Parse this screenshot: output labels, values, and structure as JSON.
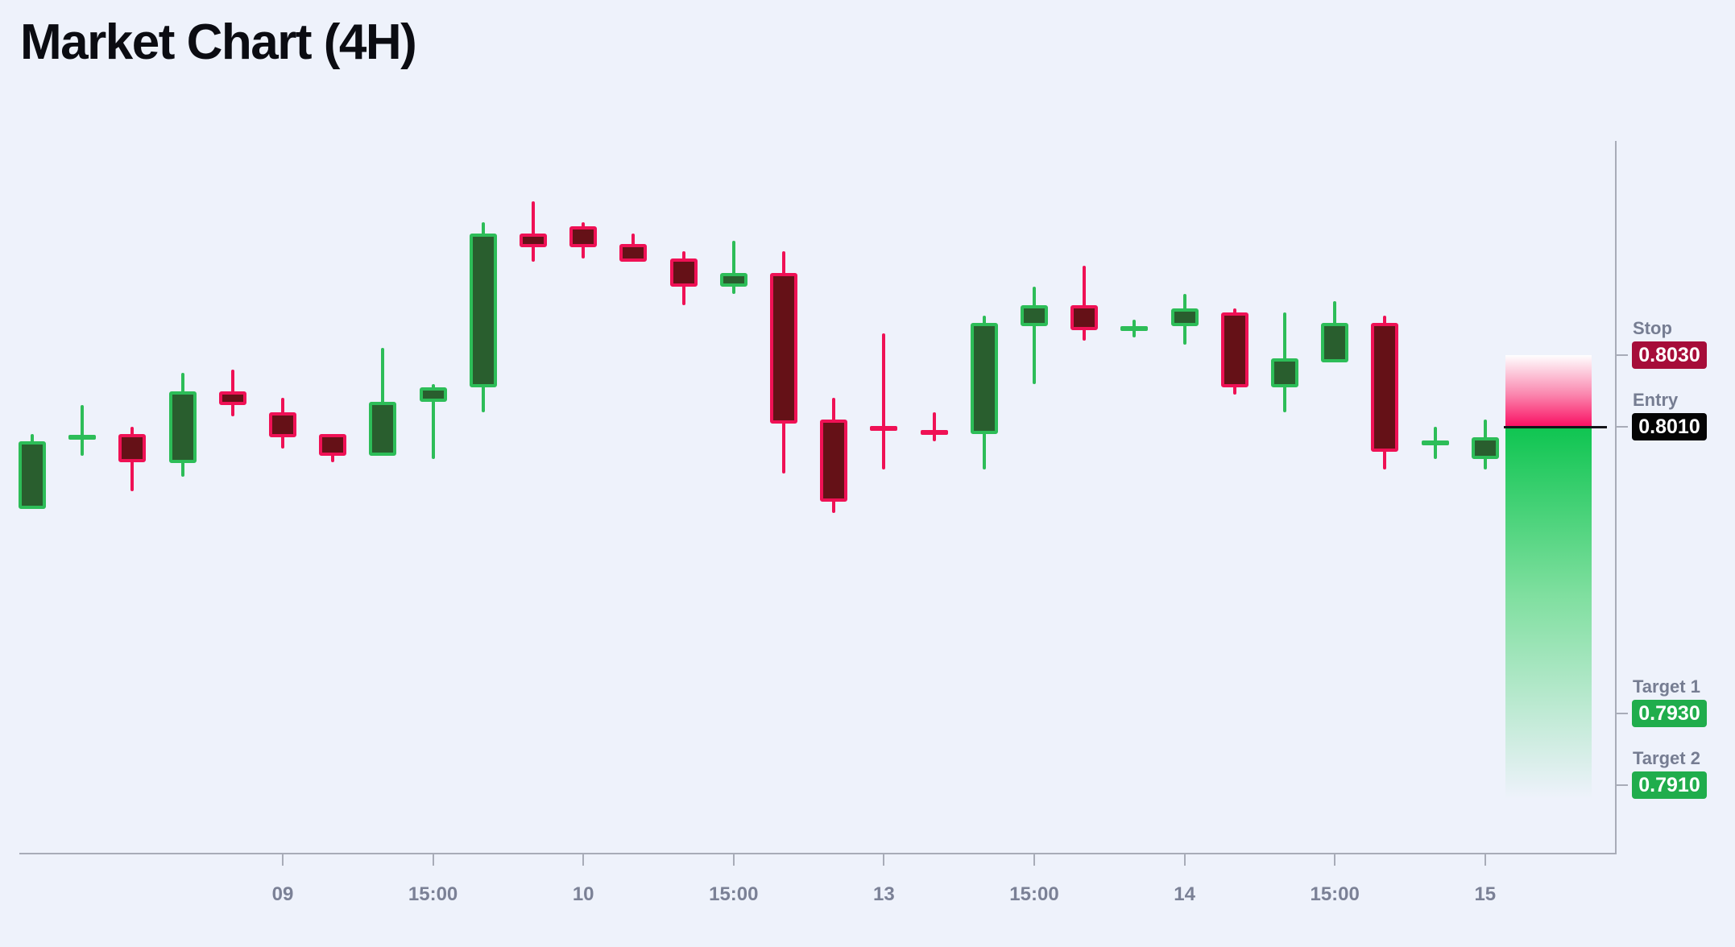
{
  "title": "Market Chart (4H)",
  "colors": {
    "bg": "#eef2fb",
    "title": "#0b0c12",
    "bull_fill": "#295e2e",
    "bull_border": "#2dbd58",
    "bear_fill": "#651117",
    "bear_border": "#ef1155",
    "axis": "#a8acb8",
    "tick_label": "#7b8196",
    "level_label": "#767d92",
    "badge_text": "#ffffff",
    "stop_badge": "#a60d39",
    "entry_badge": "#050505",
    "target_badge": "#20ad4c",
    "risk": "#f90f62",
    "reward": "#0fc551",
    "entry_line": "#141519"
  },
  "levels": {
    "stop": {
      "label": "Stop",
      "value": "0.8030"
    },
    "entry": {
      "label": "Entry",
      "value": "0.8010"
    },
    "target1": {
      "label": "Target 1",
      "value": "0.7930"
    },
    "target2": {
      "label": "Target 2",
      "value": "0.7910"
    }
  },
  "axis": {
    "x_ticks": [
      {
        "label": "09",
        "index": 5
      },
      {
        "label": "15:00",
        "index": 8
      },
      {
        "label": "10",
        "index": 11
      },
      {
        "label": "15:00",
        "index": 14
      },
      {
        "label": "13",
        "index": 17
      },
      {
        "label": "15:00",
        "index": 20
      },
      {
        "label": "14",
        "index": 23
      },
      {
        "label": "15:00",
        "index": 26
      },
      {
        "label": "15",
        "index": 29
      }
    ]
  },
  "chart_data": {
    "type": "candlestick",
    "title": "Market Chart (4H)",
    "timeframe": "4H",
    "x_axis_labels": [
      "09",
      "15:00",
      "10",
      "15:00",
      "13",
      "15:00",
      "14",
      "15:00",
      "15"
    ],
    "price_levels": {
      "stop": 0.803,
      "entry": 0.801,
      "target1": 0.793,
      "target2": 0.791
    },
    "trade_direction": "short",
    "ylim": [
      0.789,
      0.808
    ],
    "candles": [
      {
        "o": 0.7987,
        "h": 0.8008,
        "l": 0.7987,
        "c": 0.8006
      },
      {
        "o": 0.8006,
        "h": 0.8016,
        "l": 0.8002,
        "c": 0.8008
      },
      {
        "o": 0.8008,
        "h": 0.801,
        "l": 0.7992,
        "c": 0.8
      },
      {
        "o": 0.8,
        "h": 0.8025,
        "l": 0.7996,
        "c": 0.802
      },
      {
        "o": 0.802,
        "h": 0.8026,
        "l": 0.8013,
        "c": 0.8016
      },
      {
        "o": 0.8014,
        "h": 0.8018,
        "l": 0.8004,
        "c": 0.8007
      },
      {
        "o": 0.8008,
        "h": 0.8008,
        "l": 0.8,
        "c": 0.8002
      },
      {
        "o": 0.8002,
        "h": 0.8032,
        "l": 0.8002,
        "c": 0.8017
      },
      {
        "o": 0.8017,
        "h": 0.8022,
        "l": 0.8001,
        "c": 0.8021
      },
      {
        "o": 0.8021,
        "h": 0.8067,
        "l": 0.8014,
        "c": 0.8064
      },
      {
        "o": 0.8064,
        "h": 0.8073,
        "l": 0.8056,
        "c": 0.806
      },
      {
        "o": 0.8066,
        "h": 0.8067,
        "l": 0.8057,
        "c": 0.806
      },
      {
        "o": 0.8061,
        "h": 0.8064,
        "l": 0.8056,
        "c": 0.8056
      },
      {
        "o": 0.8057,
        "h": 0.8059,
        "l": 0.8044,
        "c": 0.8049
      },
      {
        "o": 0.8049,
        "h": 0.8062,
        "l": 0.8047,
        "c": 0.8053
      },
      {
        "o": 0.8053,
        "h": 0.8059,
        "l": 0.7997,
        "c": 0.8011
      },
      {
        "o": 0.8012,
        "h": 0.8018,
        "l": 0.7986,
        "c": 0.7989
      },
      {
        "o": 0.801,
        "h": 0.8036,
        "l": 0.7998,
        "c": 0.8009
      },
      {
        "o": 0.8009,
        "h": 0.8014,
        "l": 0.8006,
        "c": 0.8008
      },
      {
        "o": 0.8008,
        "h": 0.8041,
        "l": 0.7998,
        "c": 0.8039
      },
      {
        "o": 0.8038,
        "h": 0.8049,
        "l": 0.8022,
        "c": 0.8044
      },
      {
        "o": 0.8044,
        "h": 0.8055,
        "l": 0.8034,
        "c": 0.8037
      },
      {
        "o": 0.8037,
        "h": 0.804,
        "l": 0.8035,
        "c": 0.8038
      },
      {
        "o": 0.8038,
        "h": 0.8047,
        "l": 0.8033,
        "c": 0.8043
      },
      {
        "o": 0.8042,
        "h": 0.8043,
        "l": 0.8019,
        "c": 0.8021
      },
      {
        "o": 0.8021,
        "h": 0.8042,
        "l": 0.8014,
        "c": 0.8029
      },
      {
        "o": 0.8028,
        "h": 0.8045,
        "l": 0.8028,
        "c": 0.8039
      },
      {
        "o": 0.8039,
        "h": 0.8041,
        "l": 0.7998,
        "c": 0.8003
      },
      {
        "o": 0.8005,
        "h": 0.801,
        "l": 0.8001,
        "c": 0.8006
      },
      {
        "o": 0.8001,
        "h": 0.8012,
        "l": 0.7998,
        "c": 0.8007
      }
    ]
  }
}
